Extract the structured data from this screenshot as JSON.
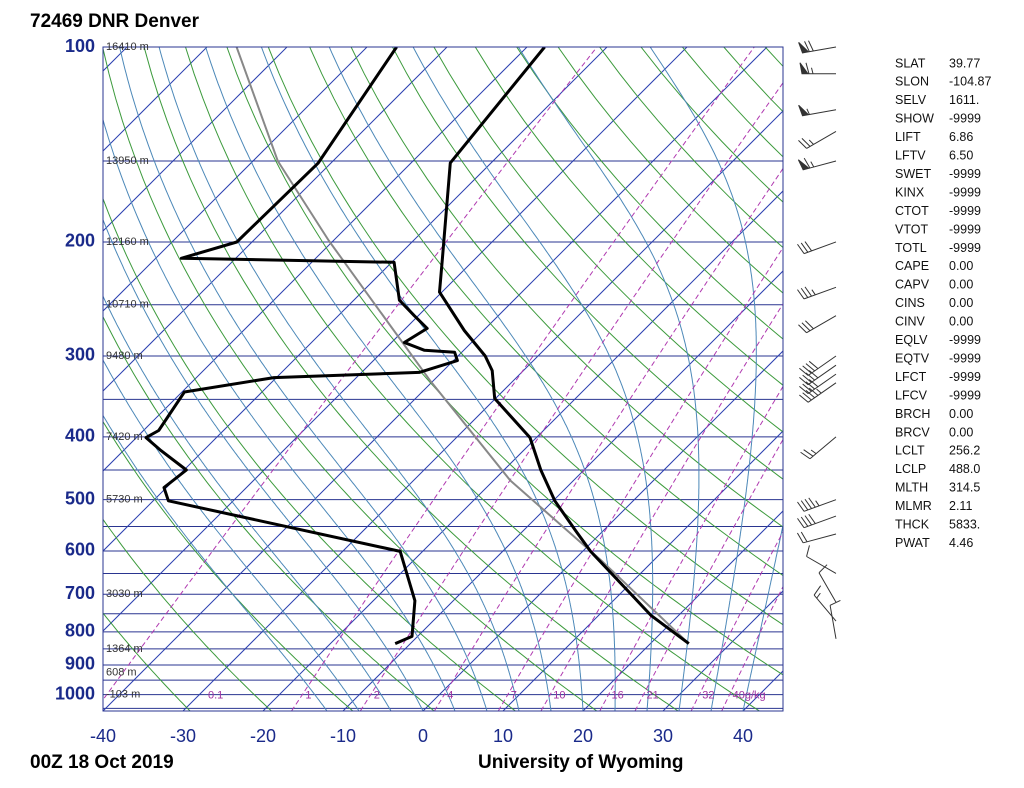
{
  "chart_data": {
    "type": "skewt",
    "title": "72469 DNR Denver",
    "footer_left": "00Z 18 Oct 2019",
    "footer_right": "University of Wyoming",
    "log_y": true,
    "ylim": [
      100,
      1060
    ],
    "yticks": [
      100,
      200,
      300,
      400,
      500,
      600,
      700,
      800,
      900,
      1000
    ],
    "minor_yticks": [
      150,
      250,
      350,
      450,
      550,
      650,
      750,
      850,
      950,
      1050
    ],
    "xlim": [
      -40,
      45
    ],
    "xticks": [
      -40,
      -30,
      -20,
      -10,
      0,
      10,
      20,
      30,
      40
    ],
    "heights": [
      {
        "pressure": 100,
        "label": "16410 m"
      },
      {
        "pressure": 150,
        "label": "13950 m"
      },
      {
        "pressure": 200,
        "label": "12160 m"
      },
      {
        "pressure": 250,
        "label": "10710 m"
      },
      {
        "pressure": 300,
        "label": "9480 m"
      },
      {
        "pressure": 400,
        "label": "7420 m"
      },
      {
        "pressure": 500,
        "label": "5730 m"
      },
      {
        "pressure": 700,
        "label": "3030 m"
      },
      {
        "pressure": 850,
        "label": "1364 m"
      },
      {
        "pressure": 925,
        "label": "608 m"
      },
      {
        "pressure": 1000,
        "label": "-103 m"
      }
    ],
    "mixing_ratios": [
      0.1,
      1,
      2,
      4,
      7,
      10,
      16,
      21,
      32,
      {
        "value": 40,
        "label": "40g/kg"
      }
    ],
    "colors": {
      "isobar": "#2a3590",
      "isotherm": "#2b3fb0",
      "dry_adiabat": "#3c9a3c",
      "moist_adiabat": "#4c88b8",
      "mixing_ratio": "#b03ab0",
      "temperature": "#000000",
      "dewpoint": "#000000",
      "parcel": "#888888",
      "wind": "#333333"
    },
    "temperature": {
      "pressure": [
        834,
        755,
        601,
        558,
        502,
        450,
        401,
        349,
        316,
        300,
        274,
        239,
        213,
        151,
        100
      ],
      "values": [
        24.8,
        16.6,
        1.0,
        -3.5,
        -9.8,
        -15.4,
        -20.8,
        -30.1,
        -33.9,
        -36.6,
        -42.4,
        -50.3,
        -54.0,
        -65.1,
        -67.8
      ]
    },
    "dewpoint": {
      "pressure": [
        834,
        813,
        716,
        601,
        502,
        479,
        450,
        420,
        401,
        391,
        341,
        324,
        318,
        305,
        296,
        294,
        286,
        272,
        260,
        246,
        215,
        212,
        200,
        151,
        100
      ],
      "values": [
        -11.9,
        -10.7,
        -14.8,
        -22.8,
        -58.1,
        -60.3,
        -59.7,
        -65.3,
        -68.8,
        -68.1,
        -69.7,
        -60.3,
        -42.8,
        -39.5,
        -40.9,
        -44.9,
        -48.4,
        -47.3,
        -50.5,
        -54.3,
        -59.7,
        -86.8,
        -81.9,
        -81.6,
        -86.3
      ]
    },
    "parcel": {
      "pressure": [
        834,
        620,
        467,
        327,
        199,
        150,
        100
      ],
      "values": [
        24.8,
        3.4,
        -17.9,
        -40.5,
        -70.6,
        -86.9,
        -106.3
      ]
    },
    "winds": [
      {
        "pressure": 100,
        "direction": 260,
        "speed": 70
      },
      {
        "pressure": 110,
        "direction": 270,
        "speed": 65
      },
      {
        "pressure": 125,
        "direction": 260,
        "speed": 55
      },
      {
        "pressure": 135,
        "direction": 240,
        "speed": 25
      },
      {
        "pressure": 150,
        "direction": 255,
        "speed": 65
      },
      {
        "pressure": 200,
        "direction": 250,
        "speed": 30
      },
      {
        "pressure": 235,
        "direction": 250,
        "speed": 35
      },
      {
        "pressure": 260,
        "direction": 240,
        "speed": 30
      },
      {
        "pressure": 300,
        "direction": 235,
        "speed": 40
      },
      {
        "pressure": 310,
        "direction": 235,
        "speed": 40
      },
      {
        "pressure": 320,
        "direction": 235,
        "speed": 40
      },
      {
        "pressure": 330,
        "direction": 235,
        "speed": 45
      },
      {
        "pressure": 400,
        "direction": 230,
        "speed": 25
      },
      {
        "pressure": 500,
        "direction": 250,
        "speed": 45
      },
      {
        "pressure": 530,
        "direction": 250,
        "speed": 40
      },
      {
        "pressure": 565,
        "direction": 255,
        "speed": 20
      },
      {
        "pressure": 650,
        "direction": 300,
        "speed": 10
      },
      {
        "pressure": 720,
        "direction": 330,
        "speed": 10
      },
      {
        "pressure": 770,
        "direction": 320,
        "speed": 15
      },
      {
        "pressure": 820,
        "direction": 350,
        "speed": 10
      }
    ]
  },
  "indices": [
    [
      "SLAT",
      "39.77"
    ],
    [
      "SLON",
      "-104.87"
    ],
    [
      "SELV",
      "1611."
    ],
    [
      "SHOW",
      "-9999"
    ],
    [
      "LIFT",
      "6.86"
    ],
    [
      "LFTV",
      "6.50"
    ],
    [
      "SWET",
      "-9999"
    ],
    [
      "KINX",
      "-9999"
    ],
    [
      "CTOT",
      "-9999"
    ],
    [
      "VTOT",
      "-9999"
    ],
    [
      "TOTL",
      "-9999"
    ],
    [
      "CAPE",
      "0.00"
    ],
    [
      "CAPV",
      "0.00"
    ],
    [
      "CINS",
      "0.00"
    ],
    [
      "CINV",
      "0.00"
    ],
    [
      "EQLV",
      "-9999"
    ],
    [
      "EQTV",
      "-9999"
    ],
    [
      "LFCT",
      "-9999"
    ],
    [
      "LFCV",
      "-9999"
    ],
    [
      "BRCH",
      "0.00"
    ],
    [
      "BRCV",
      "0.00"
    ],
    [
      "LCLT",
      "256.2"
    ],
    [
      "LCLP",
      "488.0"
    ],
    [
      "MLTH",
      "314.5"
    ],
    [
      "MLMR",
      "2.11"
    ],
    [
      "THCK",
      "5833."
    ],
    [
      "PWAT",
      "4.46"
    ]
  ]
}
